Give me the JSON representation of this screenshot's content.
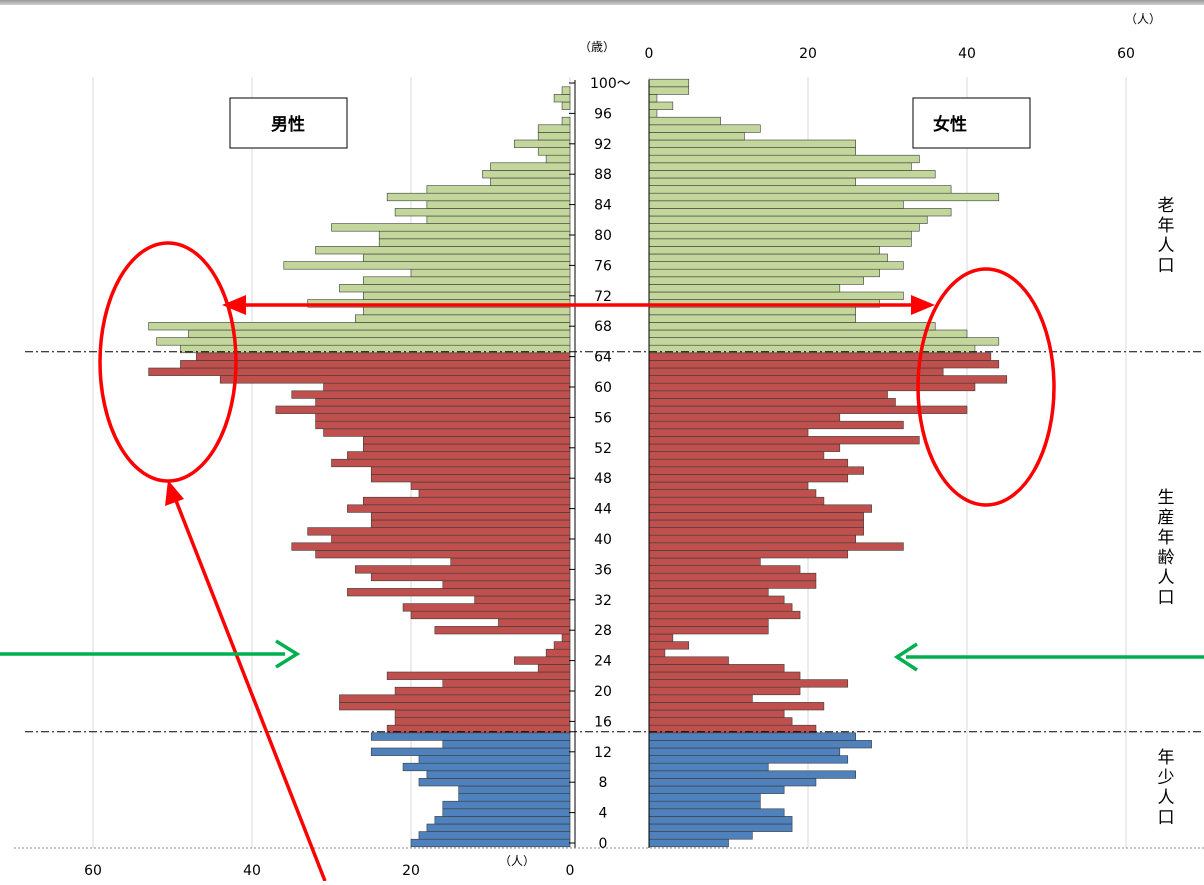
{
  "chart_data": {
    "type": "bar",
    "subtype": "population-pyramid",
    "age_axis_label": "（歳）",
    "count_unit_label": "（人）",
    "age_tick_labels": [
      "0",
      "4",
      "8",
      "12",
      "16",
      "20",
      "24",
      "28",
      "32",
      "36",
      "40",
      "44",
      "48",
      "52",
      "56",
      "60",
      "64",
      "68",
      "72",
      "76",
      "80",
      "84",
      "88",
      "92",
      "96",
      "100〜"
    ],
    "male_label": "男性",
    "female_label": "女性",
    "male_axis": {
      "range": [
        60,
        0
      ],
      "ticks": [
        "60",
        "40",
        "20",
        "0"
      ]
    },
    "female_axis": {
      "range": [
        0,
        60
      ],
      "ticks": [
        "0",
        "20",
        "40",
        "60"
      ]
    },
    "groups": [
      {
        "name": "年少人口",
        "ages": [
          0,
          14
        ],
        "color": "#4f81bd"
      },
      {
        "name": "生産年齢人口",
        "ages": [
          15,
          64
        ],
        "color": "#c0504d"
      },
      {
        "name": "老年人口",
        "ages": [
          65,
          100
        ],
        "color": "#c3d69b"
      }
    ],
    "ages": [
      0,
      1,
      2,
      3,
      4,
      5,
      6,
      7,
      8,
      9,
      10,
      11,
      12,
      13,
      14,
      15,
      16,
      17,
      18,
      19,
      20,
      21,
      22,
      23,
      24,
      25,
      26,
      27,
      28,
      29,
      30,
      31,
      32,
      33,
      34,
      35,
      36,
      37,
      38,
      39,
      40,
      41,
      42,
      43,
      44,
      45,
      46,
      47,
      48,
      49,
      50,
      51,
      52,
      53,
      54,
      55,
      56,
      57,
      58,
      59,
      60,
      61,
      62,
      63,
      64,
      65,
      66,
      67,
      68,
      69,
      70,
      71,
      72,
      73,
      74,
      75,
      76,
      77,
      78,
      79,
      80,
      81,
      82,
      83,
      84,
      85,
      86,
      87,
      88,
      89,
      90,
      91,
      92,
      93,
      94,
      95,
      96,
      97,
      98,
      99,
      100
    ],
    "series": [
      {
        "name": "男性",
        "values": [
          20,
          19,
          18,
          17,
          16,
          16,
          14,
          14,
          19,
          18,
          21,
          19,
          25,
          16,
          25,
          23,
          22,
          22,
          29,
          29,
          22,
          16,
          23,
          4,
          7,
          3,
          2,
          1,
          17,
          9,
          20,
          21,
          12,
          28,
          16,
          25,
          27,
          15,
          32,
          35,
          30,
          33,
          25,
          25,
          28,
          26,
          19,
          20,
          25,
          25,
          30,
          28,
          26,
          26,
          31,
          32,
          32,
          37,
          32,
          35,
          31,
          44,
          53,
          49,
          47,
          49,
          52,
          48,
          53,
          27,
          26,
          33,
          26,
          29,
          26,
          20,
          36,
          26,
          32,
          24,
          24,
          30,
          18,
          22,
          18,
          23,
          18,
          10,
          11,
          10,
          3,
          4,
          7,
          4,
          4,
          1,
          0,
          1,
          2,
          1,
          0
        ]
      },
      {
        "name": "女性",
        "values": [
          10,
          13,
          18,
          18,
          17,
          14,
          14,
          17,
          21,
          26,
          15,
          25,
          24,
          28,
          26,
          21,
          18,
          17,
          22,
          13,
          19,
          25,
          19,
          17,
          10,
          2,
          5,
          3,
          15,
          15,
          19,
          18,
          17,
          15,
          21,
          21,
          19,
          14,
          25,
          32,
          26,
          27,
          27,
          27,
          28,
          22,
          21,
          20,
          25,
          27,
          25,
          22,
          24,
          34,
          20,
          32,
          24,
          40,
          31,
          30,
          41,
          45,
          37,
          44,
          43,
          41,
          44,
          40,
          36,
          26,
          26,
          29,
          32,
          24,
          27,
          29,
          32,
          30,
          29,
          33,
          33,
          34,
          35,
          38,
          32,
          44,
          38,
          26,
          36,
          33,
          34,
          26,
          26,
          12,
          14,
          9,
          1,
          3,
          1,
          5,
          5
        ]
      }
    ],
    "annotations": {
      "male_highlight": "ellipse around ages 52-71",
      "female_highlight": "ellipse around ages 47-71",
      "arrows": "red double arrow at age 71; green arrows toward ages 23-24; red arrow toward male ellipse"
    },
    "colors": {
      "young": "#4f81bd",
      "working": "#c0504d",
      "elderly": "#c3d69b",
      "highlight": "#ff0000",
      "arrow_green": "#00b050"
    }
  }
}
